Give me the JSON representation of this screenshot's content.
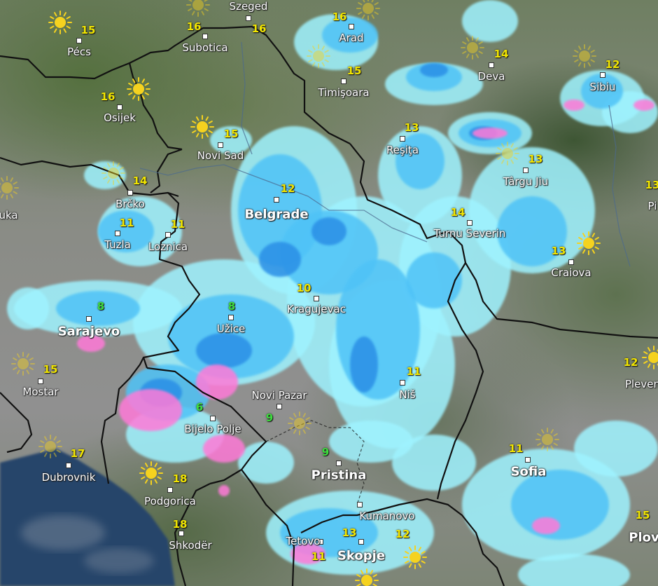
{
  "map": {
    "colors": {
      "temp_default": "#f2e600",
      "temp_cold": "#3ddc3d",
      "rain_light": "#9ff3ff",
      "rain_moderate": "#4fc3f7",
      "rain_heavy": "#2a8fe6",
      "snow_mix": "#ff7ad8",
      "sea": "#27456b",
      "border": "#111111",
      "sun": "#f5d21f"
    },
    "cities": [
      {
        "name": "Pécs",
        "temp": "15",
        "temp_color": "temp_default",
        "icon": "sun-icon"
      },
      {
        "name": "Szeged",
        "temp": "16",
        "temp_color": "temp_default",
        "icon": "sun-icon"
      },
      {
        "name": "Subotica",
        "temp": "16",
        "temp_color": "temp_default"
      },
      {
        "name": "Osijek",
        "temp": "16",
        "temp_color": "temp_default",
        "icon": "sun-icon"
      },
      {
        "name": "Novi Sad",
        "temp": "15",
        "temp_color": "temp_default",
        "icon": "sun-icon"
      },
      {
        "name": "Arad",
        "temp": "16",
        "temp_color": "temp_default",
        "icon": "sun-icon"
      },
      {
        "name": "Timişoara",
        "temp": "15",
        "temp_color": "temp_default",
        "icon": "sun-icon"
      },
      {
        "name": "Deva",
        "temp": "14",
        "temp_color": "temp_default",
        "icon": "sun-icon"
      },
      {
        "name": "Sibiu",
        "temp": "12",
        "temp_color": "temp_default",
        "icon": "sun-icon"
      },
      {
        "name": "Reşiţa",
        "temp": "13",
        "temp_color": "temp_default"
      },
      {
        "name": "Târgu Jiu",
        "temp": "13",
        "temp_color": "temp_default",
        "icon": "sun-icon"
      },
      {
        "name": "Turnu Severin",
        "temp": "14",
        "temp_color": "temp_default"
      },
      {
        "name": "Craiova",
        "temp": "13",
        "temp_color": "temp_default",
        "icon": "sun-icon"
      },
      {
        "name": "Pi",
        "temp": "13",
        "temp_color": "temp_default"
      },
      {
        "name": "uka",
        "temp": "",
        "temp_color": "temp_default",
        "icon": "sun-icon"
      },
      {
        "name": "Brčko",
        "temp": "14",
        "temp_color": "temp_default",
        "icon": "sun-icon"
      },
      {
        "name": "Tuzla",
        "temp": "11",
        "temp_color": "temp_default"
      },
      {
        "name": "Loznica",
        "temp": "11",
        "temp_color": "temp_default"
      },
      {
        "name": "Belgrade",
        "temp": "12",
        "temp_color": "temp_default"
      },
      {
        "name": "Kragujevac",
        "temp": "10",
        "temp_color": "temp_default"
      },
      {
        "name": "Užice",
        "temp": "8",
        "temp_color": "temp_cold"
      },
      {
        "name": "Sarajevo",
        "temp": "8",
        "temp_color": "temp_cold"
      },
      {
        "name": "Mostar",
        "temp": "15",
        "temp_color": "temp_default",
        "icon": "sun-icon"
      },
      {
        "name": "Novi Pazar",
        "temp": "9",
        "temp_color": "temp_cold",
        "icon": "sun-icon"
      },
      {
        "name": "Niš",
        "temp": "11",
        "temp_color": "temp_default"
      },
      {
        "name": "Bijelo Polje",
        "temp": "6",
        "temp_color": "temp_cold"
      },
      {
        "name": "Dubrovnik",
        "temp": "17",
        "temp_color": "temp_default",
        "icon": "sun-icon"
      },
      {
        "name": "Podgorica",
        "temp": "18",
        "temp_color": "temp_default",
        "icon": "sun-icon"
      },
      {
        "name": "Pristina",
        "temp": "9",
        "temp_color": "temp_cold"
      },
      {
        "name": "Shkodër",
        "temp": "18",
        "temp_color": "temp_default"
      },
      {
        "name": "Kumanovo",
        "temp": "12",
        "temp_color": "temp_default",
        "icon": "sun-icon"
      },
      {
        "name": "Tetovo",
        "temp": "11",
        "temp_color": "temp_default"
      },
      {
        "name": "Skopje",
        "temp": "13",
        "temp_color": "temp_default",
        "icon": "sun-icon"
      },
      {
        "name": "Sofia",
        "temp": "11",
        "temp_color": "temp_default",
        "icon": "sun-icon"
      },
      {
        "name": "Pleven",
        "temp": "12",
        "temp_color": "temp_default",
        "icon": "sun-icon"
      },
      {
        "name": "Plov",
        "temp": "15",
        "temp_color": "temp_default"
      }
    ]
  }
}
